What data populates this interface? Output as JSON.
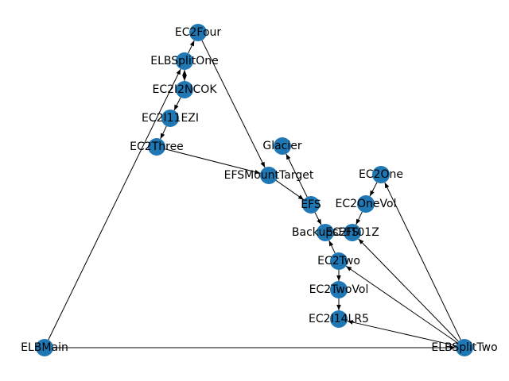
{
  "graph": {
    "node_color": "#1f77b4",
    "edge_color": "#000000",
    "label_color": "#000000",
    "nodes": [
      {
        "id": "EC2Four",
        "label": "EC2Four"
      },
      {
        "id": "ELBSplitOne",
        "label": "ELBSplitOne"
      },
      {
        "id": "EC2I2NCOK",
        "label": "EC2I2NCOK"
      },
      {
        "id": "EC2I11EZI",
        "label": "EC2I11EZI"
      },
      {
        "id": "EC2Three",
        "label": "EC2Three"
      },
      {
        "id": "Glacier",
        "label": "Glacier"
      },
      {
        "id": "EFSMountTarget",
        "label": "EFSMountTarget"
      },
      {
        "id": "EC2One",
        "label": "EC2One"
      },
      {
        "id": "EFS",
        "label": "EFS"
      },
      {
        "id": "EC2OneVol",
        "label": "EC2OneVol"
      },
      {
        "id": "BackupsEFS",
        "label": "BackupsEFS"
      },
      {
        "id": "EC2IT01Z",
        "label": "EC2IT01Z"
      },
      {
        "id": "EC2Two",
        "label": "EC2Two"
      },
      {
        "id": "EC2TwoVol",
        "label": "EC2TwoVol"
      },
      {
        "id": "EC2I14LR5",
        "label": "EC2I14LR5"
      },
      {
        "id": "ELBMain",
        "label": "ELBMain"
      },
      {
        "id": "ELBSplitTwo",
        "label": "ELBSplitTwo"
      }
    ],
    "edges": [
      {
        "source": "ELBSplitOne",
        "target": "EC2Four"
      },
      {
        "source": "EC2Four",
        "target": "EFSMountTarget"
      },
      {
        "source": "ELBSplitOne",
        "target": "EC2I2NCOK"
      },
      {
        "source": "EC2I2NCOK",
        "target": "ELBSplitOne"
      },
      {
        "source": "EC2I2NCOK",
        "target": "EC2I11EZI"
      },
      {
        "source": "EC2I11EZI",
        "target": "EC2Three"
      },
      {
        "source": "EC2Three",
        "target": "EFSMountTarget"
      },
      {
        "source": "EFSMountTarget",
        "target": "EFS"
      },
      {
        "source": "EFS",
        "target": "Glacier"
      },
      {
        "source": "EFS",
        "target": "BackupsEFS"
      },
      {
        "source": "EC2One",
        "target": "EC2OneVol"
      },
      {
        "source": "EC2OneVol",
        "target": "EC2IT01Z"
      },
      {
        "source": "EC2Two",
        "target": "BackupsEFS"
      },
      {
        "source": "EC2Two",
        "target": "EC2TwoVol"
      },
      {
        "source": "EC2TwoVol",
        "target": "EC2I14LR5"
      },
      {
        "source": "ELBMain",
        "target": "ELBSplitOne"
      },
      {
        "source": "ELBMain",
        "target": "ELBSplitTwo"
      },
      {
        "source": "ELBSplitTwo",
        "target": "EC2One"
      },
      {
        "source": "ELBSplitTwo",
        "target": "EC2IT01Z"
      },
      {
        "source": "ELBSplitTwo",
        "target": "EC2Two"
      },
      {
        "source": "ELBSplitTwo",
        "target": "EC2I14LR5"
      }
    ]
  }
}
